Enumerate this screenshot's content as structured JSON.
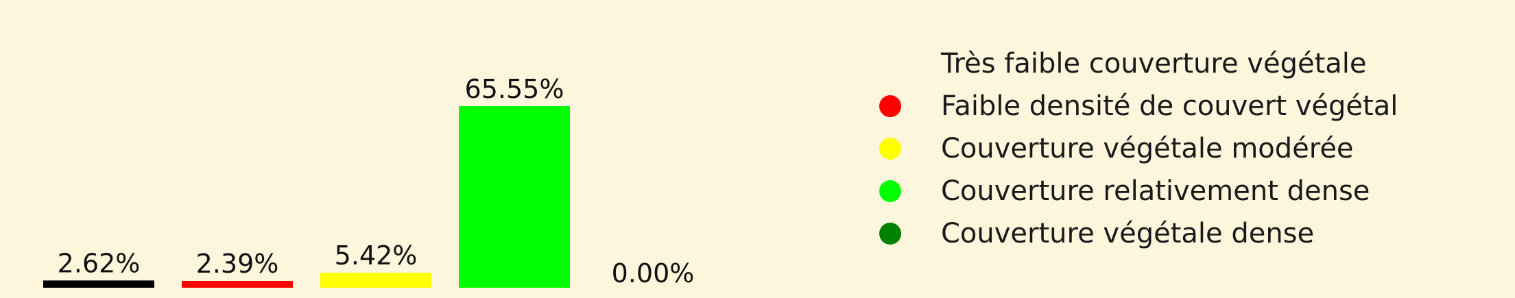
{
  "chart_data": {
    "type": "bar",
    "title": "",
    "xlabel": "",
    "ylabel": "",
    "ylim": [
      0,
      65.55
    ],
    "grid": false,
    "legend_placement": "right",
    "categories": [
      "Très faible couverture végétale",
      "Faible densité de couvert végétal",
      "Couverture végétale modérée",
      "Couverture relativement dense",
      "Couverture végétale dense"
    ],
    "values": [
      2.62,
      2.39,
      5.42,
      65.55,
      0.0
    ],
    "value_labels": [
      "2.62%",
      "2.39%",
      "5.42%",
      "65.55%",
      "0.00%"
    ],
    "colors": [
      "#000000",
      "#ff0000",
      "#ffff00",
      "#00ff00",
      "#008000"
    ],
    "legend_colors": [
      "#fdf5dc",
      "#ff0000",
      "#ffff00",
      "#00ff00",
      "#008000"
    ]
  }
}
